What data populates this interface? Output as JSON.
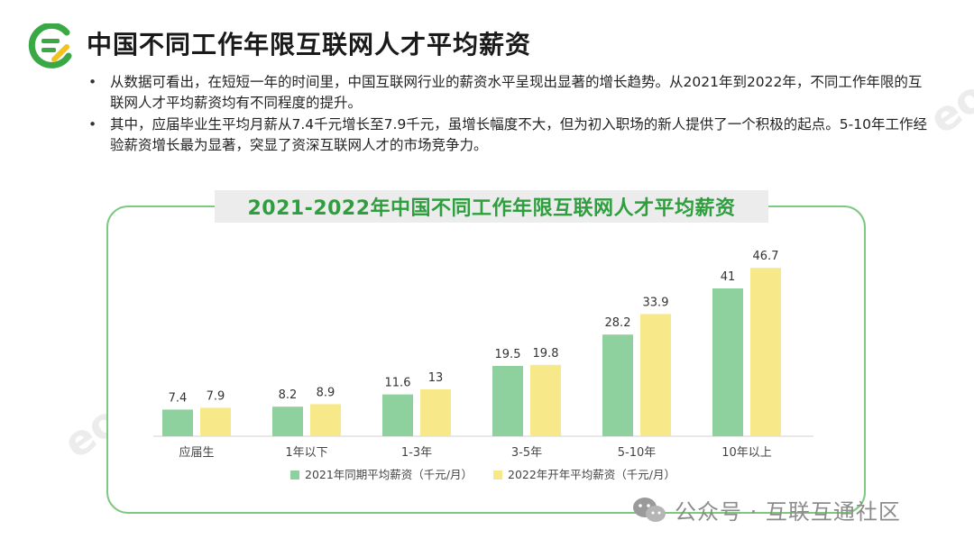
{
  "header": {
    "title": "中国不同工作年限互联网人才平均薪资"
  },
  "bullets": [
    "从数据可看出，在短短一年的时间里，中国互联网行业的薪资水平呈现出显著的增长趋势。从2021年到2022年，不同工作年限的互联网人才平均薪资均有不同程度的提升。",
    "其中，应届毕业生平均月薪从7.4千元增长至7.9千元，虽增长幅度不大，但为初入职场的新人提供了一个积极的起点。5-10年工作经验薪资增长最为显著，突显了资深互联网人才的市场竞争力。"
  ],
  "watermark_text": "eo",
  "footer": {
    "text": "公众号 · 互联互通社区"
  },
  "colors": {
    "series_2021": "#8fd19e",
    "series_2022": "#f7e98a",
    "title_green": "#2e9e3e",
    "panel_border": "#7cc97f"
  },
  "chart_data": {
    "type": "bar",
    "title": "2021-2022年中国不同工作年限互联网人才平均薪资",
    "categories": [
      "应届生",
      "1年以下",
      "1-3年",
      "3-5年",
      "5-10年",
      "10年以上"
    ],
    "series": [
      {
        "name": "2021年同期平均薪资（千元/月）",
        "values": [
          7.4,
          8.2,
          11.6,
          19.5,
          28.2,
          41
        ]
      },
      {
        "name": "2022年开年平均薪资（千元/月）",
        "values": [
          7.9,
          8.9,
          13,
          19.8,
          33.9,
          46.7
        ]
      }
    ],
    "ylim": [
      0,
      50
    ],
    "grid": false,
    "legend_position": "bottom"
  }
}
